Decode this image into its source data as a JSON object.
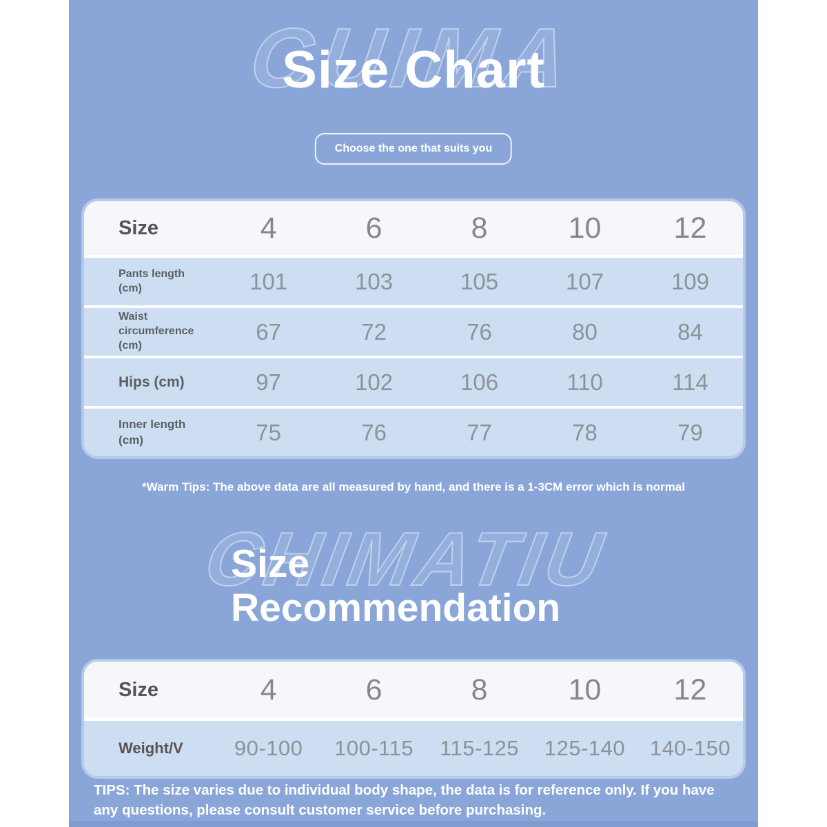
{
  "colors": {
    "background_blue": "#8aa6d9",
    "table_header_bg": "#f5f7fb",
    "table_row_bg": "#cddef2",
    "table_border": "#b6c9e8",
    "title_text": "#ffffff",
    "label_text": "#53555a",
    "value_text": "#8d9298",
    "bottom_strip": "#7e9cd0"
  },
  "header": {
    "watermark": "CUIMA",
    "title": "Size Chart",
    "button_label": "Choose the one that suits you"
  },
  "size_table": {
    "header_label": "Size",
    "sizes": [
      "4",
      "6",
      "8",
      "10",
      "12"
    ],
    "rows": [
      {
        "label": "Pants length (cm)",
        "values": [
          "101",
          "103",
          "105",
          "107",
          "109"
        ]
      },
      {
        "label": "Waist circumference (cm)",
        "values": [
          "67",
          "72",
          "76",
          "80",
          "84"
        ]
      },
      {
        "label": "Hips (cm)",
        "values": [
          "97",
          "102",
          "106",
          "110",
          "114"
        ]
      },
      {
        "label": "Inner length (cm)",
        "values": [
          "75",
          "76",
          "77",
          "78",
          "79"
        ]
      }
    ],
    "note": "*Warm Tips: The above data are all measured by hand, and there is a 1-3CM error which is normal"
  },
  "recommendation": {
    "watermark": "CHIMATIU",
    "title_line1": "Size",
    "title_line2": "Recommendation",
    "table": {
      "header_label": "Size",
      "sizes": [
        "4",
        "6",
        "8",
        "10",
        "12"
      ],
      "rows": [
        {
          "label": "Weight/V",
          "values": [
            "90-100",
            "100-115",
            "115-125",
            "125-140",
            "140-150"
          ]
        }
      ]
    },
    "tips": "TIPS: The size varies due to individual body shape, the data is for reference only. If you have any questions, please consult customer service before purchasing."
  }
}
